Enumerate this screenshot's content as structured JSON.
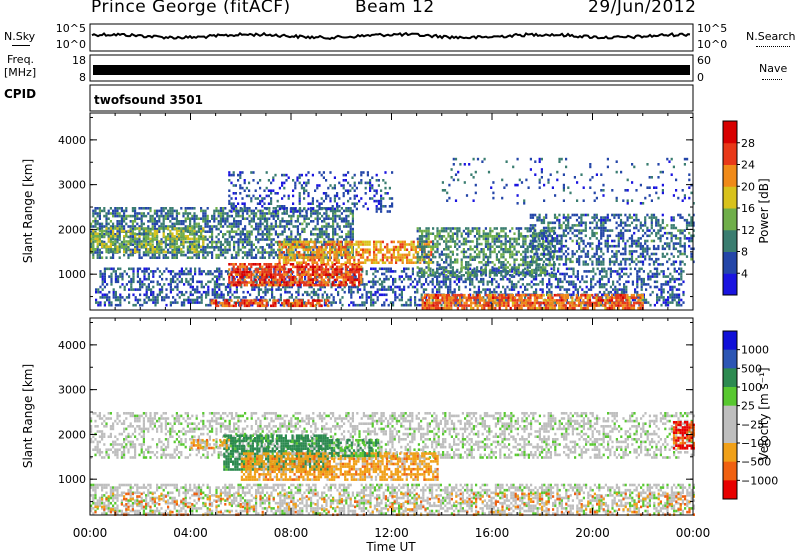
{
  "header": {
    "station": "Prince George (fitACF)",
    "beam": "Beam 12",
    "date": "29/Jun/2012"
  },
  "top_panels": {
    "nsky_label": "N.Sky",
    "nsky_ticks": [
      "10^5",
      "10^0"
    ],
    "nsearch_label": "N.Search",
    "nsearch_ticks": [
      "10^5",
      "10^0"
    ],
    "freq_label": "Freq.",
    "freq_unit": "[MHz]",
    "freq_ticks": [
      "18",
      "8"
    ],
    "nave_label": "Nave",
    "nave_ticks": [
      "60",
      "0"
    ],
    "cpid_label": "CPID",
    "cpid_value": "twofsound 3501"
  },
  "x_axis": {
    "label": "Time UT",
    "ticks": [
      "00:00",
      "04:00",
      "08:00",
      "12:00",
      "16:00",
      "20:00",
      "00:00"
    ]
  },
  "colors": {
    "power_scale": [
      "#1a14e0",
      "#2446a8",
      "#3a7d70",
      "#6fae4a",
      "#d8c21c",
      "#f08a18",
      "#e83818",
      "#d80000"
    ],
    "velocity_scale": [
      "#1010d8",
      "#2c56b4",
      "#2c8a50",
      "#58c830",
      "#bebebe",
      "#bebebe",
      "#f0a018",
      "#f06010",
      "#e80000"
    ]
  },
  "chart_data": [
    {
      "type": "heatmap",
      "panel": "power",
      "ylabel": "Slant Range [km]",
      "y_ticks": [
        1000,
        2000,
        3000,
        4000
      ],
      "ylim": [
        200,
        4600
      ],
      "xlim_hours": [
        0,
        24
      ],
      "colorbar": {
        "label": "Power [dB]",
        "ticks": [
          "4",
          "8",
          "12",
          "16",
          "20",
          "24",
          "28"
        ],
        "range": [
          0,
          32
        ]
      },
      "regions": [
        {
          "t0": 0.2,
          "t1": 23.6,
          "r0": 320,
          "r1": 1150,
          "density": 0.45,
          "value": 7
        },
        {
          "t0": 0.0,
          "t1": 10.5,
          "r0": 1350,
          "r1": 2500,
          "density": 0.6,
          "value": 9
        },
        {
          "t0": 0.0,
          "t1": 4.5,
          "r0": 1500,
          "r1": 2050,
          "density": 0.55,
          "value": 15
        },
        {
          "t0": 5.5,
          "t1": 10.8,
          "r0": 750,
          "r1": 1250,
          "density": 0.75,
          "value": 26
        },
        {
          "t0": 7.5,
          "t1": 13.6,
          "r0": 1250,
          "r1": 1750,
          "density": 0.65,
          "value": 21
        },
        {
          "t0": 4.8,
          "t1": 9.5,
          "r0": 280,
          "r1": 440,
          "density": 0.7,
          "value": 25
        },
        {
          "t0": 13.2,
          "t1": 22.0,
          "r0": 250,
          "r1": 560,
          "density": 0.8,
          "value": 24
        },
        {
          "t0": 13.0,
          "t1": 18.5,
          "r0": 1000,
          "r1": 2050,
          "density": 0.55,
          "value": 11
        },
        {
          "t0": 17.5,
          "t1": 24.0,
          "r0": 1200,
          "r1": 2350,
          "density": 0.45,
          "value": 8
        },
        {
          "t0": 5.5,
          "t1": 12.0,
          "r0": 2400,
          "r1": 3300,
          "density": 0.25,
          "value": 6
        },
        {
          "t0": 14.0,
          "t1": 24.0,
          "r0": 2600,
          "r1": 3600,
          "density": 0.08,
          "value": 6
        }
      ]
    },
    {
      "type": "heatmap",
      "panel": "velocity",
      "ylabel": "Slant Range [km]",
      "y_ticks": [
        1000,
        2000,
        3000,
        4000
      ],
      "ylim": [
        200,
        4600
      ],
      "xlim_hours": [
        0,
        24
      ],
      "colorbar": {
        "label": "Velocity [m s⁻¹]",
        "ticks": [
          "1000",
          "500",
          "100",
          "25",
          "−25",
          "−100",
          "−500",
          "−1000"
        ]
      },
      "regions": [
        {
          "t0": 0.0,
          "t1": 24.0,
          "r0": 1500,
          "r1": 2500,
          "density": 0.45,
          "value": 0
        },
        {
          "t0": 0.0,
          "t1": 24.0,
          "r0": 250,
          "r1": 900,
          "density": 0.55,
          "value": 0
        },
        {
          "t0": 5.3,
          "t1": 9.5,
          "r0": 1200,
          "r1": 2000,
          "density": 0.75,
          "value": 150
        },
        {
          "t0": 6.0,
          "t1": 13.8,
          "r0": 1000,
          "r1": 1600,
          "density": 0.7,
          "value": -200
        },
        {
          "t0": 9.5,
          "t1": 11.5,
          "r0": 1500,
          "r1": 1900,
          "density": 0.6,
          "value": 80
        },
        {
          "t0": 4.0,
          "t1": 5.5,
          "r0": 1700,
          "r1": 1900,
          "density": 0.6,
          "value": -200
        },
        {
          "t0": 23.2,
          "t1": 24.0,
          "r0": 1700,
          "r1": 2300,
          "density": 0.7,
          "value": -800
        },
        {
          "t0": 0.0,
          "t1": 24.0,
          "r0": 200,
          "r1": 700,
          "density": 0.15,
          "value": -300
        }
      ]
    }
  ]
}
